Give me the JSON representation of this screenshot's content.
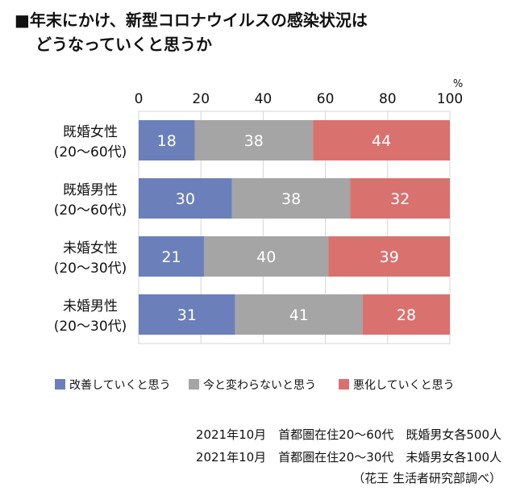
{
  "title": {
    "prefix": "■",
    "line1": "年末にかけ、新型コロナウイルスの感染状況は",
    "line2": "どうなっていくと思うか"
  },
  "chart_data": {
    "type": "bar",
    "orientation": "horizontal-stacked-100",
    "unit": "%",
    "xlim": [
      0,
      100
    ],
    "xticks": [
      0,
      20,
      40,
      60,
      80,
      100
    ],
    "categories": [
      [
        "既婚女性",
        "(20〜60代)"
      ],
      [
        "既婚男性",
        "(20〜60代)"
      ],
      [
        "未婚女性",
        "(20〜30代)"
      ],
      [
        "未婚男性",
        "(20〜30代)"
      ]
    ],
    "series": [
      {
        "name": "改善していくと思う",
        "color": "#6b7fba",
        "values": [
          18,
          30,
          21,
          31
        ]
      },
      {
        "name": "今と変わらないと思う",
        "color": "#a5a5a5",
        "values": [
          38,
          38,
          40,
          41
        ]
      },
      {
        "name": "悪化していくと思う",
        "color": "#d9726f",
        "values": [
          44,
          32,
          39,
          28
        ]
      }
    ],
    "legend_position": "bottom",
    "grid": true
  },
  "notes": {
    "line1": "2021年10月　首都圏在住20〜60代　既婚男女各500人",
    "line2": "2021年10月　首都圏在住20〜30代　未婚男女各100人",
    "line3": "（花王 生活者研究部調べ）"
  }
}
